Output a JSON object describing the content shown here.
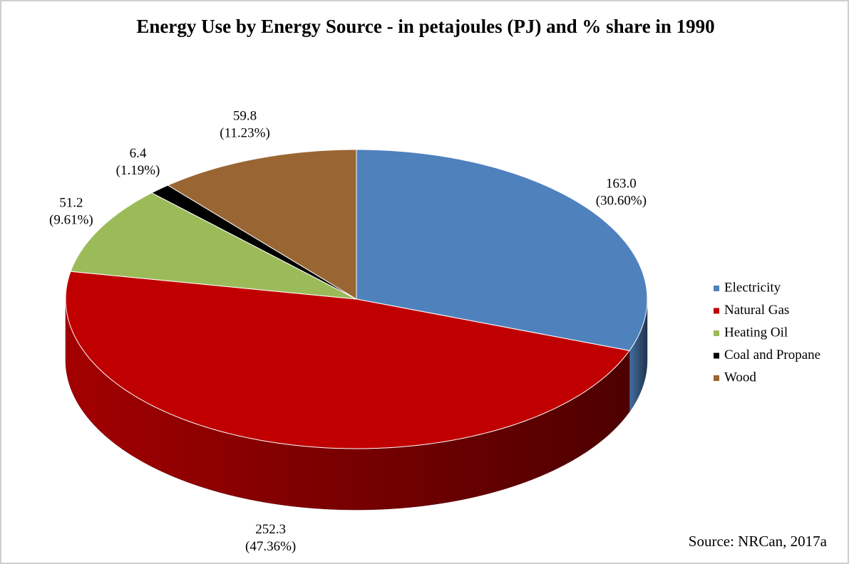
{
  "chart_data": {
    "type": "pie3d",
    "title": "Energy Use by Energy Source - in petajoules (PJ) and % share in 1990",
    "categories": [
      "Electricity",
      "Natural Gas",
      "Heating Oil",
      "Coal and Propane",
      "Wood"
    ],
    "values": [
      163.0,
      252.3,
      51.2,
      6.4,
      59.8
    ],
    "value_labels": [
      "163.0",
      "252.3",
      "51.2",
      "6.4",
      "59.8"
    ],
    "shares": [
      30.6,
      47.36,
      9.61,
      1.19,
      11.23
    ],
    "share_labels": [
      "(30.60%)",
      "(47.36%)",
      "(9.61%)",
      "(1.19%)",
      "(11.23%)"
    ],
    "colors": [
      "#4f81bd",
      "#c00000",
      "#9bbb59",
      "#000000",
      "#996633"
    ],
    "legend": "right",
    "source": "Source: NRCan, 2017a"
  }
}
